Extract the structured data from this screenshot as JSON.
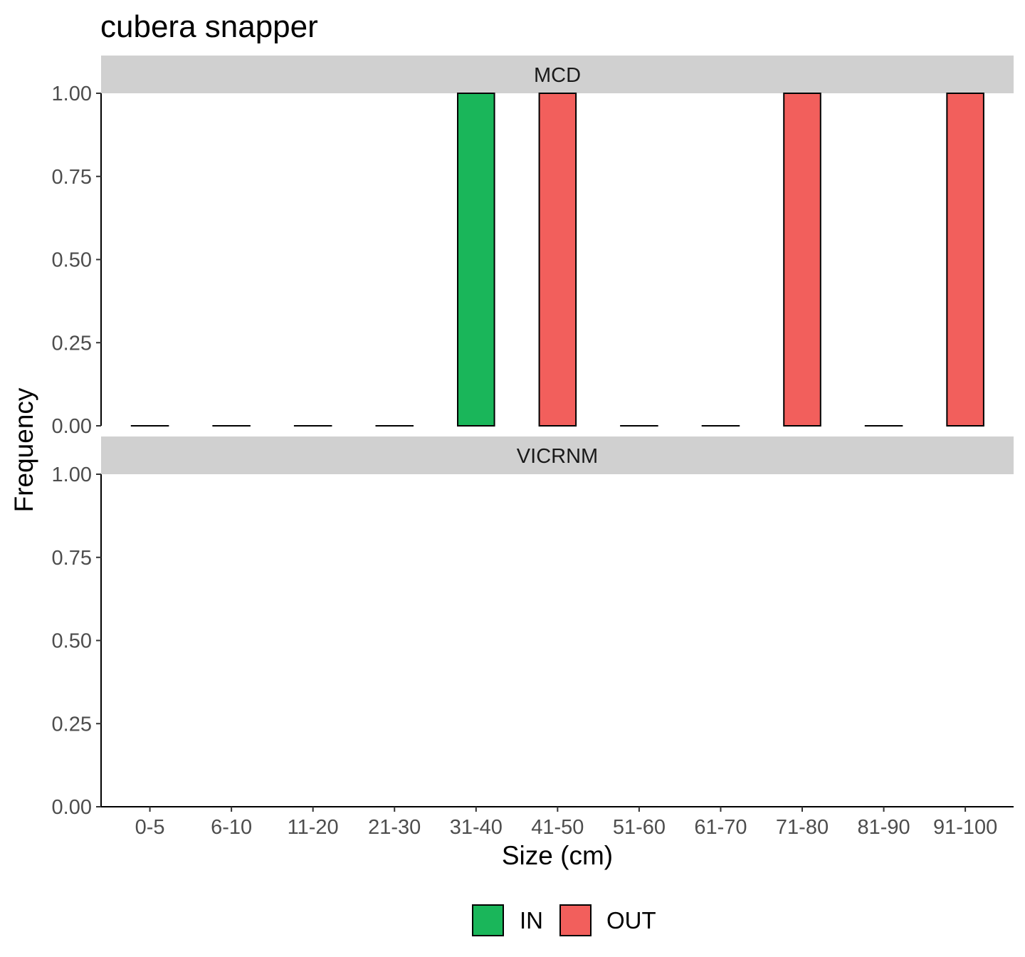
{
  "chart_data": {
    "type": "bar",
    "title": "cubera snapper",
    "xlabel": "Size (cm)",
    "ylabel": "Frequency",
    "ylim": [
      0,
      1
    ],
    "yticks": [
      "0.00",
      "0.25",
      "0.50",
      "0.75",
      "1.00"
    ],
    "categories": [
      "0-5",
      "6-10",
      "11-20",
      "21-30",
      "31-40",
      "41-50",
      "51-60",
      "61-70",
      "71-80",
      "81-90",
      "91-100"
    ],
    "grid": false,
    "legend_position": "bottom",
    "legend": [
      {
        "name": "IN",
        "color": "#1ab65a"
      },
      {
        "name": "OUT",
        "color": "#f25f5c"
      }
    ],
    "panels": [
      {
        "name": "MCD",
        "bars": [
          {
            "category": "0-5",
            "value": 0,
            "group": "OUT"
          },
          {
            "category": "6-10",
            "value": 0,
            "group": "OUT"
          },
          {
            "category": "11-20",
            "value": 0,
            "group": "OUT"
          },
          {
            "category": "21-30",
            "value": 0,
            "group": "OUT"
          },
          {
            "category": "31-40",
            "value": 1,
            "group": "IN"
          },
          {
            "category": "41-50",
            "value": 1,
            "group": "OUT"
          },
          {
            "category": "51-60",
            "value": 0,
            "group": "OUT"
          },
          {
            "category": "61-70",
            "value": 0,
            "group": "OUT"
          },
          {
            "category": "71-80",
            "value": 1,
            "group": "OUT"
          },
          {
            "category": "81-90",
            "value": 0,
            "group": "OUT"
          },
          {
            "category": "91-100",
            "value": 1,
            "group": "OUT"
          }
        ]
      },
      {
        "name": "VICRNM",
        "bars": [
          {
            "category": "0-5",
            "value": 0,
            "group": "OUT"
          },
          {
            "category": "6-10",
            "value": 0,
            "group": "OUT"
          },
          {
            "category": "11-20",
            "value": 0,
            "group": "OUT"
          },
          {
            "category": "21-30",
            "value": 0,
            "group": "OUT"
          },
          {
            "category": "31-40",
            "value": 0,
            "group": "OUT"
          },
          {
            "category": "41-50",
            "value": 0,
            "group": "OUT"
          },
          {
            "category": "51-60",
            "value": 0,
            "group": "OUT"
          },
          {
            "category": "61-70",
            "value": 0,
            "group": "OUT"
          },
          {
            "category": "71-80",
            "value": 0,
            "group": "OUT"
          },
          {
            "category": "81-90",
            "value": 0,
            "group": "OUT"
          },
          {
            "category": "91-100",
            "value": 0,
            "group": "OUT"
          }
        ]
      }
    ]
  }
}
